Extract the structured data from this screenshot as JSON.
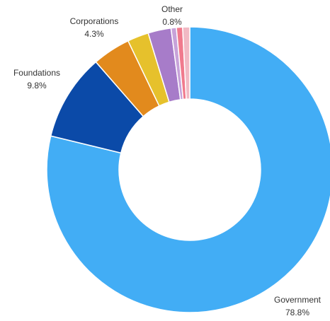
{
  "chart_data": {
    "type": "pie",
    "donut": true,
    "slices": [
      {
        "label": "Government",
        "value_text": "78.8%",
        "value": 78.8,
        "color": "#42adf5",
        "labeled": true
      },
      {
        "label": "Foundations",
        "value_text": "9.8%",
        "value": 9.8,
        "color": "#0b4aa8",
        "labeled": true
      },
      {
        "label": "Corporations",
        "value_text": "4.3%",
        "value": 4.3,
        "color": "#e28a1d",
        "labeled": true
      },
      {
        "label": "",
        "value_text": "",
        "value": 2.4,
        "color": "#e6c12c",
        "labeled": false
      },
      {
        "label": "",
        "value_text": "",
        "value": 2.6,
        "color": "#a77cc9",
        "labeled": false
      },
      {
        "label": "",
        "value_text": "",
        "value": 0.6,
        "color": "#c7a2d9",
        "labeled": false
      },
      {
        "label": "",
        "value_text": "",
        "value": 0.7,
        "color": "#f07a8d",
        "labeled": false
      },
      {
        "label": "Other",
        "value_text": "0.8%",
        "value": 0.8,
        "color": "#f1b9c4",
        "labeled": true
      }
    ],
    "start": "12 o'clock",
    "direction": "clockwise"
  }
}
